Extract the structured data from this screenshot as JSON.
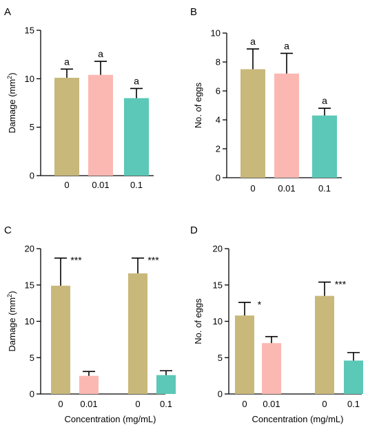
{
  "colors": {
    "c0": "#c8b87a",
    "c001": "#fbb8b2",
    "c01": "#5cc8b7"
  },
  "chart_data": [
    {
      "panel": "A",
      "type": "bar",
      "ylabel_main": "Damage (mm",
      "ylabel_sup": "2",
      "ylabel_tail": ")",
      "xlabel": "",
      "ylim": [
        0,
        15
      ],
      "yticks": [
        "0",
        "5",
        "10",
        "15"
      ],
      "ytick_values": [
        0,
        5,
        10,
        15
      ],
      "bars": [
        {
          "label": "0",
          "value": 10.1,
          "error": 0.9,
          "color": "c0",
          "annot": "a"
        },
        {
          "label": "0.01",
          "value": 10.4,
          "error": 1.4,
          "color": "c001",
          "annot": "a"
        },
        {
          "label": "0.1",
          "value": 8.0,
          "error": 1.0,
          "color": "c01",
          "annot": "a"
        }
      ]
    },
    {
      "panel": "B",
      "type": "bar",
      "ylabel_main": "No. of eggs",
      "ylabel_sup": "",
      "ylabel_tail": "",
      "xlabel": "",
      "ylim": [
        0,
        10
      ],
      "yticks": [
        "0",
        "2",
        "4",
        "6",
        "8",
        "10"
      ],
      "ytick_values": [
        0,
        2,
        4,
        6,
        8,
        10
      ],
      "bars": [
        {
          "label": "0",
          "value": 7.5,
          "error": 1.4,
          "color": "c0",
          "annot": "a"
        },
        {
          "label": "0.01",
          "value": 7.2,
          "error": 1.4,
          "color": "c001",
          "annot": "a"
        },
        {
          "label": "0.1",
          "value": 4.3,
          "error": 0.5,
          "color": "c01",
          "annot": "a"
        }
      ]
    },
    {
      "panel": "C",
      "type": "bar",
      "ylabel_main": "Damage (mm",
      "ylabel_sup": "2",
      "ylabel_tail": ")",
      "xlabel": "Concentration (mg/mL)",
      "ylim": [
        0,
        20
      ],
      "yticks": [
        "0",
        "5",
        "10",
        "15",
        "20"
      ],
      "ytick_values": [
        0,
        5,
        10,
        15,
        20
      ],
      "groups": [
        {
          "annot": "***",
          "bars": [
            {
              "label": "0",
              "value": 14.9,
              "error": 3.8,
              "color": "c0"
            },
            {
              "label": "0.01",
              "value": 2.5,
              "error": 0.6,
              "color": "c001"
            }
          ]
        },
        {
          "annot": "***",
          "bars": [
            {
              "label": "0",
              "value": 16.6,
              "error": 2.1,
              "color": "c0"
            },
            {
              "label": "0.1",
              "value": 2.6,
              "error": 0.6,
              "color": "c01"
            }
          ]
        }
      ]
    },
    {
      "panel": "D",
      "type": "bar",
      "ylabel_main": "No. of eggs",
      "ylabel_sup": "",
      "ylabel_tail": "",
      "xlabel": "Concentration (mg/mL)",
      "ylim": [
        0,
        20
      ],
      "yticks": [
        "0",
        "5",
        "10",
        "15",
        "20"
      ],
      "ytick_values": [
        0,
        5,
        10,
        15,
        20
      ],
      "groups": [
        {
          "annot": "*",
          "bars": [
            {
              "label": "0",
              "value": 10.8,
              "error": 1.8,
              "color": "c0"
            },
            {
              "label": "0.01",
              "value": 7.0,
              "error": 0.9,
              "color": "c001"
            }
          ]
        },
        {
          "annot": "***",
          "bars": [
            {
              "label": "0",
              "value": 13.5,
              "error": 1.9,
              "color": "c0"
            },
            {
              "label": "0.1",
              "value": 4.6,
              "error": 1.1,
              "color": "c01"
            }
          ]
        }
      ]
    }
  ]
}
